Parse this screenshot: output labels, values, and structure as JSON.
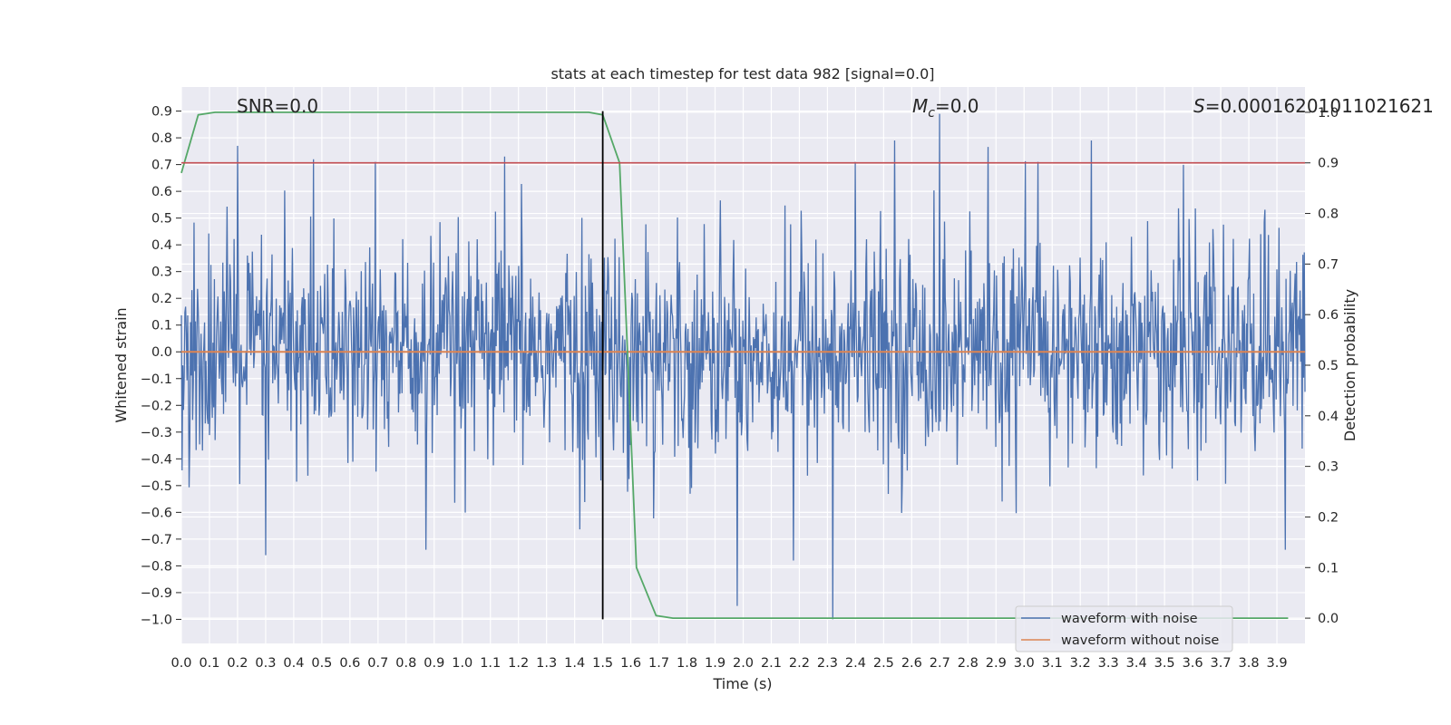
{
  "chart_data": {
    "type": "line",
    "title": "stats at each timestep for test data 982 [signal=0.0]",
    "xlabel": "Time (s)",
    "ylabel_left": "Whitened strain",
    "ylabel_right": "Detection probability",
    "xlim": [
      0.0,
      4.0
    ],
    "ylim_left": [
      -1.09,
      0.99
    ],
    "ylim_right": [
      -0.05,
      1.05
    ],
    "x_ticks": [
      "0.0",
      "0.1",
      "0.2",
      "0.3",
      "0.4",
      "0.5",
      "0.6",
      "0.7",
      "0.8",
      "0.9",
      "1.0",
      "1.1",
      "1.2",
      "1.3",
      "1.4",
      "1.5",
      "1.6",
      "1.7",
      "1.8",
      "1.9",
      "2.0",
      "2.1",
      "2.2",
      "2.3",
      "2.4",
      "2.5",
      "2.6",
      "2.7",
      "2.8",
      "2.9",
      "3.0",
      "3.1",
      "3.2",
      "3.3",
      "3.4",
      "3.5",
      "3.6",
      "3.7",
      "3.8",
      "3.9"
    ],
    "y_ticks_left": [
      "0.9",
      "0.8",
      "0.7",
      "0.6",
      "0.5",
      "0.4",
      "0.3",
      "0.2",
      "0.1",
      "0.0",
      "−0.1",
      "−0.2",
      "−0.3",
      "−0.4",
      "−0.5",
      "−0.6",
      "−0.7",
      "−0.8",
      "−0.9",
      "−1.0"
    ],
    "y_ticks_right": [
      "1.0",
      "0.9",
      "0.8",
      "0.7",
      "0.6",
      "0.5",
      "0.4",
      "0.3",
      "0.2",
      "0.1",
      "0.0"
    ],
    "grid": true,
    "annotations": {
      "snr": "SNR=0.0",
      "mc_symbol": "M",
      "mc_sub": "c",
      "mc_value": "=0.0",
      "s_symbol": "S",
      "s_value": "=0.00016201011021621"
    },
    "vline_x": 1.5,
    "threshold_right": 0.9,
    "series": [
      {
        "name": "waveform with noise",
        "color": "#4c72b0",
        "axis": "left",
        "x_range": [
          0.0,
          4.0
        ],
        "samples": 1600,
        "amplitude_std": 0.2,
        "min": -1.0,
        "max": 0.89,
        "notable_peaks": [
          [
            0.2,
            0.77
          ],
          [
            0.47,
            0.72
          ],
          [
            0.69,
            0.71
          ],
          [
            1.15,
            0.73
          ],
          [
            2.4,
            0.71
          ],
          [
            2.54,
            0.79
          ],
          [
            2.7,
            0.89
          ],
          [
            3.05,
            0.71
          ],
          [
            2.32,
            -1.0
          ],
          [
            0.3,
            -0.76
          ],
          [
            0.87,
            -0.74
          ],
          [
            2.18,
            -0.78
          ],
          [
            3.93,
            -0.74
          ]
        ]
      },
      {
        "name": "waveform without noise",
        "color": "#dd8452",
        "axis": "left",
        "x": [
          0.0,
          4.0
        ],
        "y": [
          0.0,
          0.0
        ]
      },
      {
        "name": "detection probability",
        "color": "#55a868",
        "axis": "right",
        "x": [
          0.0,
          0.06,
          0.12,
          0.2,
          1.45,
          1.5,
          1.56,
          1.62,
          1.69,
          1.75,
          3.94
        ],
        "y": [
          0.88,
          0.995,
          1.0,
          1.0,
          1.0,
          0.995,
          0.9,
          0.1,
          0.005,
          0.0,
          0.0
        ]
      }
    ],
    "legend": {
      "placement": "lower-right",
      "entries": [
        "waveform with noise",
        "waveform without noise"
      ]
    }
  }
}
